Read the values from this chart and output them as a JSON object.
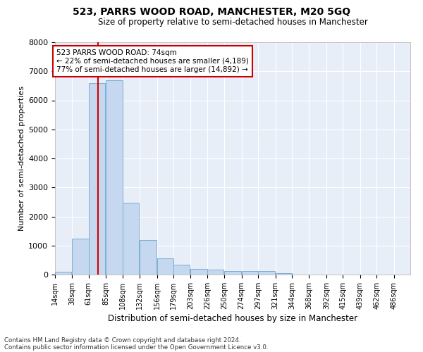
{
  "title": "523, PARRS WOOD ROAD, MANCHESTER, M20 5GQ",
  "subtitle": "Size of property relative to semi-detached houses in Manchester",
  "xlabel": "Distribution of semi-detached houses by size in Manchester",
  "ylabel": "Number of semi-detached properties",
  "bar_color": "#c6d8ef",
  "bar_edge_color": "#7aafd4",
  "bg_color": "#e8eef8",
  "grid_color": "#ffffff",
  "annotation_line_color": "#cc0000",
  "annotation_box_color": "#cc0000",
  "annotation_text": "523 PARRS WOOD ROAD: 74sqm\n← 22% of semi-detached houses are smaller (4,189)\n77% of semi-detached houses are larger (14,892) →",
  "property_size_sqm": 74,
  "categories": [
    "14sqm",
    "38sqm",
    "61sqm",
    "85sqm",
    "108sqm",
    "132sqm",
    "156sqm",
    "179sqm",
    "203sqm",
    "226sqm",
    "250sqm",
    "274sqm",
    "297sqm",
    "321sqm",
    "344sqm",
    "368sqm",
    "392sqm",
    "415sqm",
    "439sqm",
    "462sqm",
    "486sqm"
  ],
  "bin_starts": [
    14,
    38,
    61,
    85,
    108,
    132,
    156,
    179,
    203,
    226,
    250,
    274,
    297,
    321,
    344,
    368,
    392,
    415,
    439,
    462
  ],
  "bin_width": 23,
  "bar_heights": [
    100,
    1230,
    6600,
    6700,
    2480,
    1180,
    560,
    340,
    200,
    180,
    110,
    110,
    110,
    60,
    0,
    0,
    0,
    0,
    0,
    0
  ],
  "ylim": [
    0,
    8000
  ],
  "yticks": [
    0,
    1000,
    2000,
    3000,
    4000,
    5000,
    6000,
    7000,
    8000
  ],
  "xtick_positions": [
    14,
    38,
    61,
    85,
    108,
    132,
    156,
    179,
    203,
    226,
    250,
    274,
    297,
    321,
    344,
    368,
    392,
    415,
    439,
    462,
    486
  ],
  "footer1": "Contains HM Land Registry data © Crown copyright and database right 2024.",
  "footer2": "Contains public sector information licensed under the Open Government Licence v3.0."
}
